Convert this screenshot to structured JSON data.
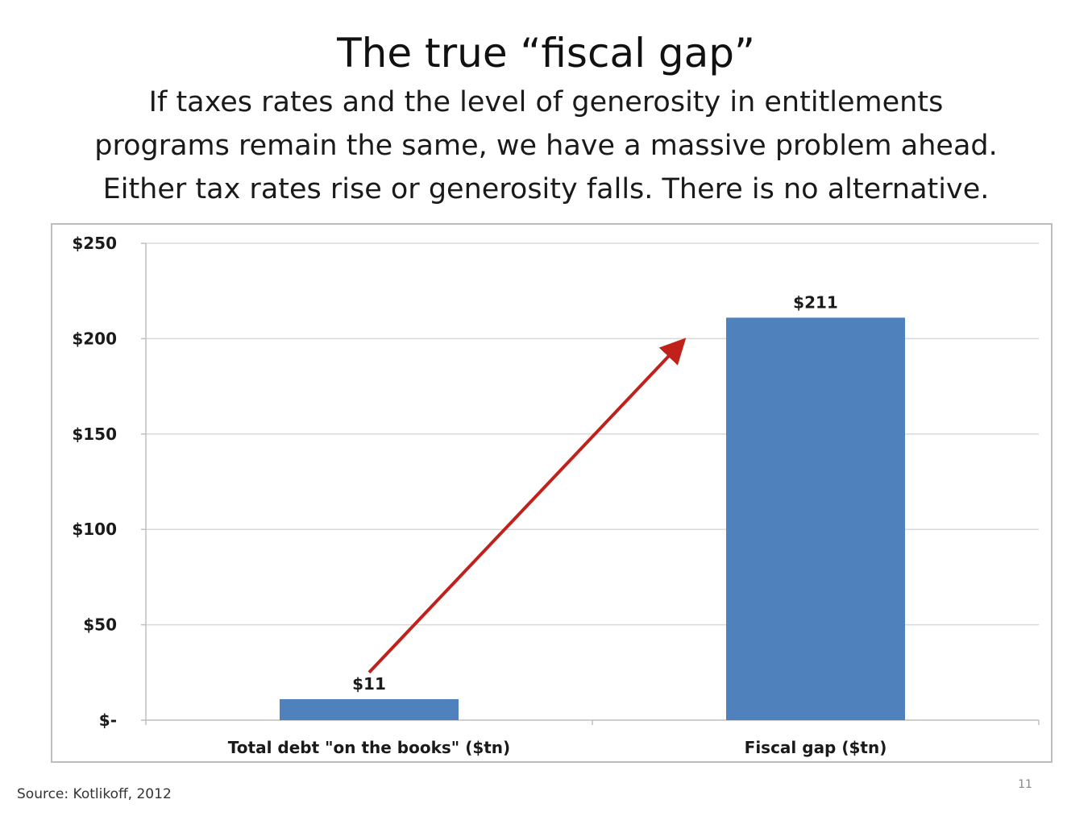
{
  "slide": {
    "title": "The true “fiscal gap”",
    "subtitle_lines": [
      "If taxes rates and the level of generosity in entitlements",
      "programs remain the same, we have a massive problem ahead.",
      "Either tax rates rise or generosity falls. There is no alternative."
    ],
    "source": "Source: Kotlikoff, 2012",
    "page_number": "11"
  },
  "chart_data": {
    "type": "bar",
    "categories": [
      "Total debt \"on the books\" ($tn)",
      "Fiscal gap ($tn)"
    ],
    "values": [
      11,
      211
    ],
    "data_labels": [
      "$11",
      "$211"
    ],
    "y_ticks": [
      0,
      50,
      100,
      150,
      200,
      250
    ],
    "y_tick_labels": [
      "$-",
      "$50",
      "$100",
      "$150",
      "$200",
      "$250"
    ],
    "ylim": [
      0,
      250
    ],
    "grid": true,
    "legend": "none",
    "bar_color": "#4f81bd",
    "annotation": {
      "type": "arrow",
      "from": {
        "category_index": 0,
        "value": 25
      },
      "to": {
        "category_index": 0.7,
        "value": 198
      },
      "color": "#c0211b"
    }
  }
}
